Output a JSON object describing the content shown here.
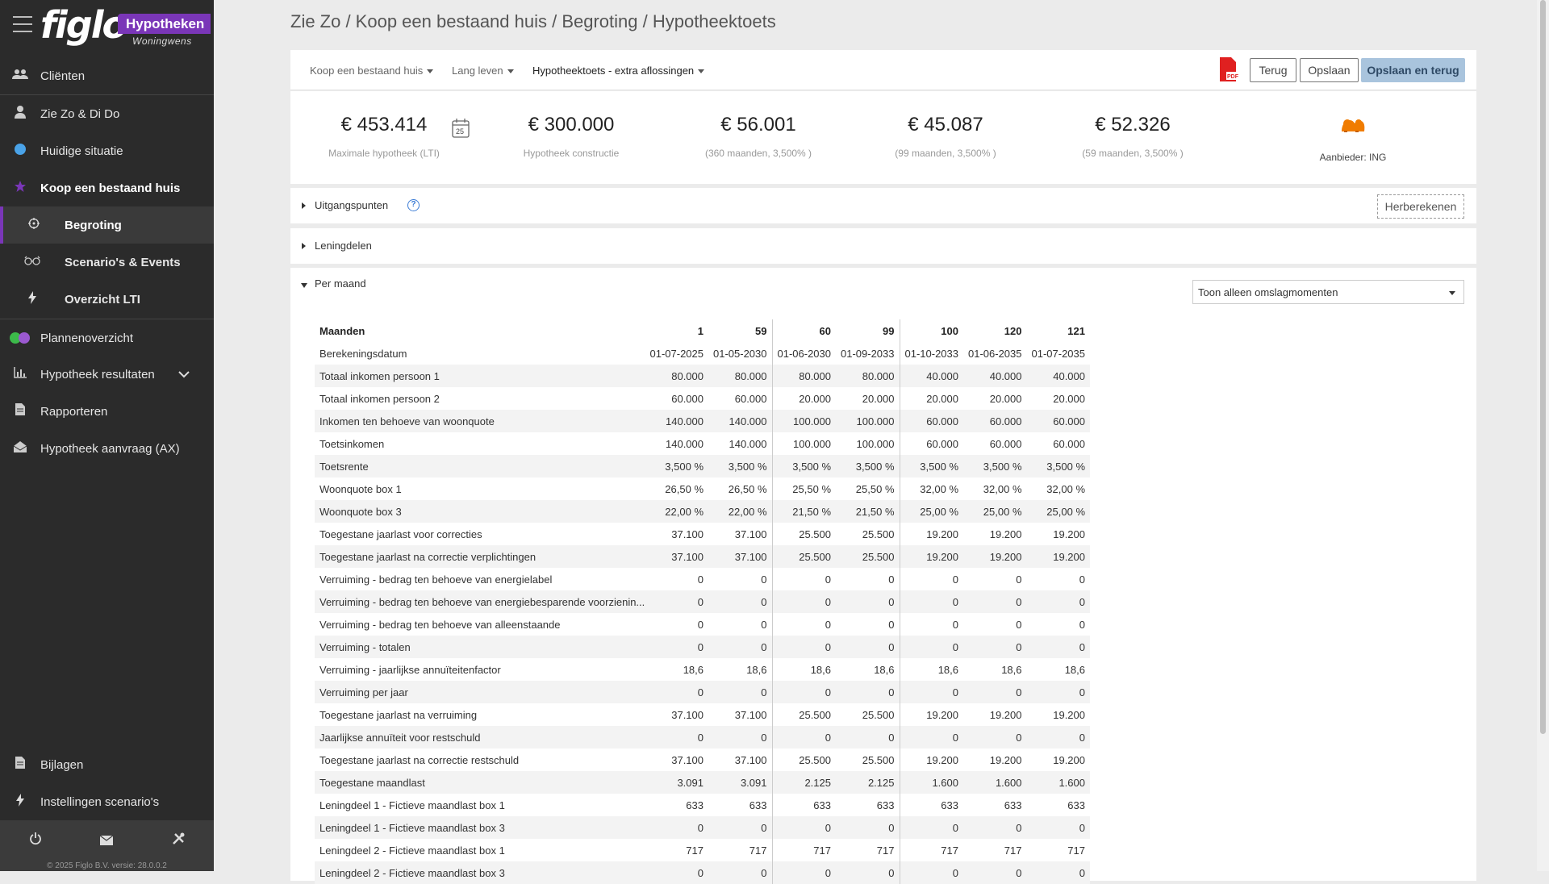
{
  "app": {
    "logo": "figlo",
    "badge": "Hypotheken",
    "sub": "Woningwens"
  },
  "sidebar": {
    "items": [
      {
        "label": "Cliënten",
        "icon": "users-icon"
      },
      {
        "label": "Zie Zo & Di Do",
        "icon": "user-icon"
      },
      {
        "label": "Huidige situatie",
        "icon": "circle-icon"
      },
      {
        "label": "Koop een bestaand huis",
        "icon": "star-icon"
      },
      {
        "label": "Begroting",
        "icon": "crosshair-icon"
      },
      {
        "label": "Scenario's & Events",
        "icon": "glasses-icon"
      },
      {
        "label": "Overzicht LTI",
        "icon": "bolt-icon"
      },
      {
        "label": "Plannenoverzicht",
        "icon": "toggle-icon"
      },
      {
        "label": "Hypotheek resultaten",
        "icon": "chart-icon"
      },
      {
        "label": "Rapporteren",
        "icon": "document-icon"
      },
      {
        "label": "Hypotheek aanvraag (AX)",
        "icon": "envelope-open-icon"
      },
      {
        "label": "Bijlagen",
        "icon": "file-icon"
      },
      {
        "label": "Instellingen scenario's",
        "icon": "bolt-icon"
      }
    ],
    "copyright": "© 2025 Figlo B.V. versie: 28.0.0.2",
    "colors": {
      "accent": "#7a36b8",
      "dot_green": "#3cb94a",
      "dot_blue": "#4aa3e8"
    }
  },
  "breadcrumb": "Zie Zo / Koop een bestaand huis / Begroting / Hypotheektoets",
  "toolbar": {
    "dropdown1": "Koop een bestaand huis",
    "dropdown2": "Lang leven",
    "dropdown3": "Hypotheektoets - extra aflossingen",
    "back_label": "Terug",
    "save_label": "Opslaan",
    "save_back_label": "Opslaan en terug"
  },
  "summary": {
    "k1": {
      "value": "€  453.414",
      "label": "Maximale hypotheek (LTI)"
    },
    "k2": {
      "value": "€  300.000",
      "label": "Hypotheek constructie"
    },
    "k3": {
      "value": "€ 56.001",
      "label": "(360 maanden, 3,500% )"
    },
    "k4": {
      "value": "€ 45.087",
      "label": "(99 maanden, 3,500% )"
    },
    "k5": {
      "value": "€ 52.326",
      "label": "(59 maanden, 3,500% )"
    },
    "provider": "Aanbieder: ING",
    "calendar_day": "25"
  },
  "sections": {
    "uitgangspunten": "Uitgangspunten",
    "herberekenen": "Herberekenen",
    "leningdelen": "Leningdelen",
    "per_maand": "Per maand",
    "filter": "Toon alleen omslagmomenten"
  },
  "table": {
    "header_label": "Maanden",
    "months": [
      "1",
      "59",
      "60",
      "99",
      "100",
      "120",
      "121"
    ],
    "rows": [
      {
        "label": "Berekeningsdatum",
        "values": [
          "01-07-2025",
          "01-05-2030",
          "01-06-2030",
          "01-09-2033",
          "01-10-2033",
          "01-06-2035",
          "01-07-2035"
        ]
      },
      {
        "label": "Totaal inkomen persoon 1",
        "values": [
          "80.000",
          "80.000",
          "80.000",
          "80.000",
          "40.000",
          "40.000",
          "40.000"
        ]
      },
      {
        "label": "Totaal inkomen persoon 2",
        "values": [
          "60.000",
          "60.000",
          "20.000",
          "20.000",
          "20.000",
          "20.000",
          "20.000"
        ]
      },
      {
        "label": "Inkomen ten behoeve van woonquote",
        "values": [
          "140.000",
          "140.000",
          "100.000",
          "100.000",
          "60.000",
          "60.000",
          "60.000"
        ]
      },
      {
        "label": "Toetsinkomen",
        "values": [
          "140.000",
          "140.000",
          "100.000",
          "100.000",
          "60.000",
          "60.000",
          "60.000"
        ]
      },
      {
        "label": "Toetsrente",
        "values": [
          "3,500 %",
          "3,500 %",
          "3,500 %",
          "3,500 %",
          "3,500 %",
          "3,500 %",
          "3,500 %"
        ]
      },
      {
        "label": "Woonquote box 1",
        "values": [
          "26,50 %",
          "26,50 %",
          "25,50 %",
          "25,50 %",
          "32,00 %",
          "32,00 %",
          "32,00 %"
        ]
      },
      {
        "label": "Woonquote box 3",
        "values": [
          "22,00 %",
          "22,00 %",
          "21,50 %",
          "21,50 %",
          "25,00 %",
          "25,00 %",
          "25,00 %"
        ]
      },
      {
        "label": "Toegestane jaarlast voor correcties",
        "values": [
          "37.100",
          "37.100",
          "25.500",
          "25.500",
          "19.200",
          "19.200",
          "19.200"
        ]
      },
      {
        "label": "Toegestane jaarlast na correctie verplichtingen",
        "values": [
          "37.100",
          "37.100",
          "25.500",
          "25.500",
          "19.200",
          "19.200",
          "19.200"
        ]
      },
      {
        "label": "Verruiming - bedrag ten behoeve van energielabel",
        "values": [
          "0",
          "0",
          "0",
          "0",
          "0",
          "0",
          "0"
        ]
      },
      {
        "label": "Verruiming - bedrag ten behoeve van energiebesparende voorzienin...",
        "values": [
          "0",
          "0",
          "0",
          "0",
          "0",
          "0",
          "0"
        ]
      },
      {
        "label": "Verruiming - bedrag ten behoeve van alleenstaande",
        "values": [
          "0",
          "0",
          "0",
          "0",
          "0",
          "0",
          "0"
        ]
      },
      {
        "label": "Verruiming - totalen",
        "values": [
          "0",
          "0",
          "0",
          "0",
          "0",
          "0",
          "0"
        ]
      },
      {
        "label": "Verruiming - jaarlijkse annuïteitenfactor",
        "values": [
          "18,6",
          "18,6",
          "18,6",
          "18,6",
          "18,6",
          "18,6",
          "18,6"
        ]
      },
      {
        "label": "Verruiming per jaar",
        "values": [
          "0",
          "0",
          "0",
          "0",
          "0",
          "0",
          "0"
        ]
      },
      {
        "label": "Toegestane jaarlast na verruiming",
        "values": [
          "37.100",
          "37.100",
          "25.500",
          "25.500",
          "19.200",
          "19.200",
          "19.200"
        ]
      },
      {
        "label": "Jaarlijkse annuïteit voor restschuld",
        "values": [
          "0",
          "0",
          "0",
          "0",
          "0",
          "0",
          "0"
        ]
      },
      {
        "label": "Toegestane jaarlast na correctie restschuld",
        "values": [
          "37.100",
          "37.100",
          "25.500",
          "25.500",
          "19.200",
          "19.200",
          "19.200"
        ]
      },
      {
        "label": "Toegestane maandlast",
        "values": [
          "3.091",
          "3.091",
          "2.125",
          "2.125",
          "1.600",
          "1.600",
          "1.600"
        ]
      },
      {
        "label": "Leningdeel 1 - Fictieve maandlast box 1",
        "values": [
          "633",
          "633",
          "633",
          "633",
          "633",
          "633",
          "633"
        ]
      },
      {
        "label": "Leningdeel 1 - Fictieve maandlast box 3",
        "values": [
          "0",
          "0",
          "0",
          "0",
          "0",
          "0",
          "0"
        ]
      },
      {
        "label": "Leningdeel 2 - Fictieve maandlast box 1",
        "values": [
          "717",
          "717",
          "717",
          "717",
          "717",
          "717",
          "717"
        ]
      },
      {
        "label": "Leningdeel 2 - Fictieve maandlast box 3",
        "values": [
          "0",
          "0",
          "0",
          "0",
          "0",
          "0",
          "0"
        ]
      }
    ]
  }
}
